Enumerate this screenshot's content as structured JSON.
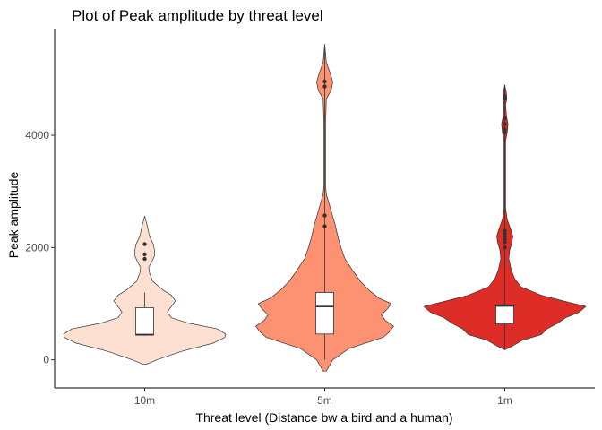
{
  "chart_data": {
    "type": "violin",
    "title": "Plot of Peak amplitude  by threat level",
    "xlabel": "Threat level (Distance bw a bird and a human)",
    "ylabel": "Peak amplitude",
    "categories": [
      "10m",
      "5m",
      "1m"
    ],
    "ylim": [
      -500,
      5900
    ],
    "yticks": [
      0,
      2000,
      4000
    ],
    "ytick_labels": [
      "0",
      "2000",
      "4000"
    ],
    "grid": false,
    "legend": "none",
    "violins": [
      {
        "category": "10m",
        "fill": "#fde0d2",
        "min": -80,
        "max": 2560,
        "box": {
          "lower_whisker": 430,
          "q1": 440,
          "median": 450,
          "q3": 930,
          "upper_whisker": 1200
        },
        "outliers": [
          1800,
          1880,
          2060
        ],
        "density": [
          [
            -80,
            0.02
          ],
          [
            0,
            0.15
          ],
          [
            150,
            0.45
          ],
          [
            300,
            0.85
          ],
          [
            400,
            0.99
          ],
          [
            460,
            1.0
          ],
          [
            550,
            0.9
          ],
          [
            650,
            0.55
          ],
          [
            750,
            0.33
          ],
          [
            850,
            0.28
          ],
          [
            950,
            0.33
          ],
          [
            1050,
            0.38
          ],
          [
            1150,
            0.33
          ],
          [
            1250,
            0.22
          ],
          [
            1400,
            0.1
          ],
          [
            1550,
            0.06
          ],
          [
            1650,
            0.05
          ],
          [
            1750,
            0.09
          ],
          [
            1850,
            0.12
          ],
          [
            1950,
            0.12
          ],
          [
            2050,
            0.11
          ],
          [
            2200,
            0.06
          ],
          [
            2400,
            0.03
          ],
          [
            2560,
            0.0
          ]
        ]
      },
      {
        "category": "5m",
        "fill": "#fc9272",
        "min": -200,
        "max": 5620,
        "box": {
          "lower_whisker": 0,
          "q1": 460,
          "median": 950,
          "q3": 1200,
          "upper_whisker": 5620
        },
        "outliers": [
          2380,
          2570,
          4870,
          4960
        ],
        "density": [
          [
            -200,
            0.02
          ],
          [
            0,
            0.1
          ],
          [
            200,
            0.3
          ],
          [
            400,
            0.72
          ],
          [
            500,
            0.8
          ],
          [
            600,
            0.85
          ],
          [
            700,
            0.75
          ],
          [
            800,
            0.7
          ],
          [
            900,
            0.77
          ],
          [
            1000,
            0.82
          ],
          [
            1100,
            0.67
          ],
          [
            1250,
            0.54
          ],
          [
            1400,
            0.44
          ],
          [
            1600,
            0.34
          ],
          [
            1800,
            0.25
          ],
          [
            2000,
            0.2
          ],
          [
            2200,
            0.16
          ],
          [
            2400,
            0.13
          ],
          [
            2600,
            0.09
          ],
          [
            2800,
            0.05
          ],
          [
            2950,
            0.02
          ],
          [
            3100,
            0.01
          ],
          [
            4200,
            0.01
          ],
          [
            4650,
            0.02
          ],
          [
            4800,
            0.08
          ],
          [
            4950,
            0.1
          ],
          [
            5100,
            0.07
          ],
          [
            5300,
            0.02
          ],
          [
            5620,
            0.0
          ]
        ]
      },
      {
        "category": "1m",
        "fill": "#de2d26",
        "min": 180,
        "max": 4900,
        "box": {
          "lower_whisker": 180,
          "q1": 640,
          "median": 960,
          "q3": 980,
          "upper_whisker": 4900
        },
        "outliers": [
          2000,
          2100,
          2150,
          2200,
          2250,
          2300,
          4050,
          4100,
          4200,
          4300,
          4650,
          4700
        ],
        "density": [
          [
            180,
            0.0
          ],
          [
            250,
            0.1
          ],
          [
            350,
            0.22
          ],
          [
            450,
            0.45
          ],
          [
            550,
            0.52
          ],
          [
            650,
            0.65
          ],
          [
            750,
            0.75
          ],
          [
            850,
            0.92
          ],
          [
            950,
            1.0
          ],
          [
            1050,
            0.72
          ],
          [
            1150,
            0.45
          ],
          [
            1300,
            0.2
          ],
          [
            1450,
            0.12
          ],
          [
            1600,
            0.08
          ],
          [
            1800,
            0.05
          ],
          [
            1950,
            0.06
          ],
          [
            2100,
            0.09
          ],
          [
            2200,
            0.1
          ],
          [
            2300,
            0.08
          ],
          [
            2500,
            0.03
          ],
          [
            2700,
            0.01
          ],
          [
            3900,
            0.01
          ],
          [
            4050,
            0.03
          ],
          [
            4200,
            0.04
          ],
          [
            4350,
            0.02
          ],
          [
            4550,
            0.01
          ],
          [
            4650,
            0.025
          ],
          [
            4750,
            0.02
          ],
          [
            4900,
            0.0
          ]
        ]
      }
    ]
  }
}
